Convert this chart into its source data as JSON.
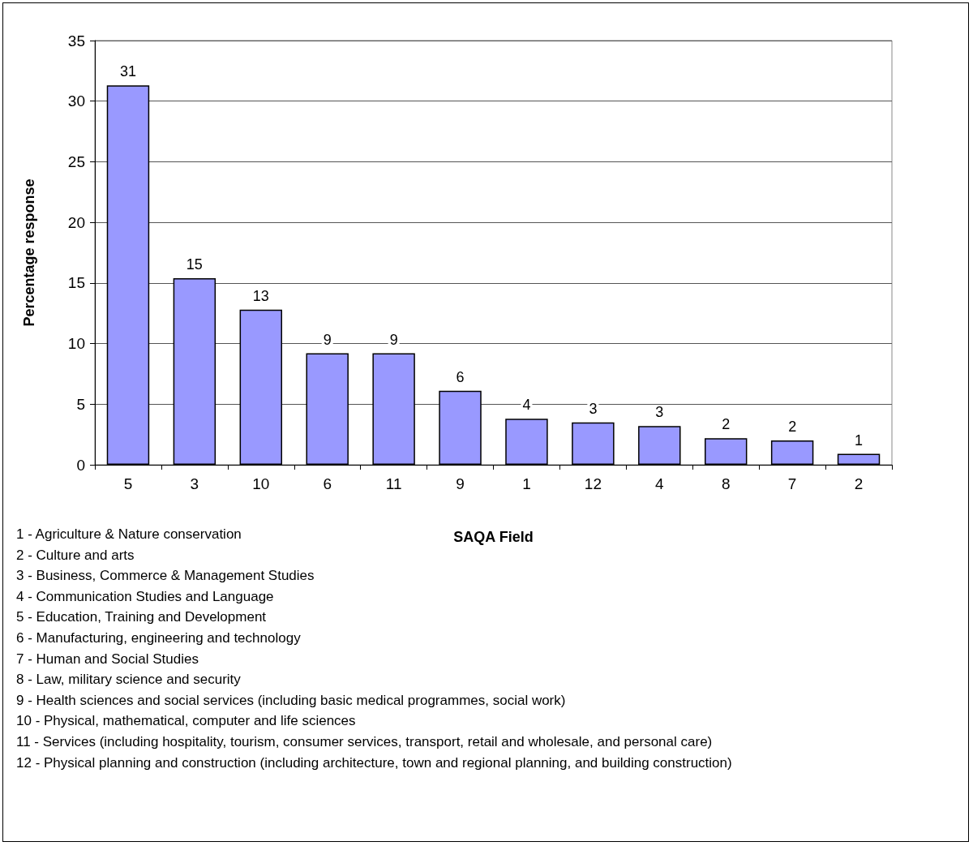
{
  "chart_data": {
    "type": "bar",
    "xlabel": "SAQA Field",
    "ylabel": "Percentage response",
    "categories": [
      "5",
      "3",
      "10",
      "6",
      "11",
      "9",
      "1",
      "12",
      "4",
      "8",
      "7",
      "2"
    ],
    "values": [
      31.3,
      15.4,
      12.8,
      9.2,
      9.2,
      6.1,
      3.8,
      3.5,
      3.2,
      2.2,
      2.0,
      0.9
    ],
    "value_labels": [
      "31",
      "15",
      "13",
      "9",
      "9",
      "6",
      "4",
      "3",
      "3",
      "2",
      "2",
      "1"
    ],
    "color": "#9999ff",
    "ylim": [
      0,
      35
    ],
    "yticks": [
      0,
      5,
      10,
      15,
      20,
      25,
      30,
      35
    ],
    "grid": "y",
    "annotations": [
      "1 - Agriculture & Nature conservation",
      "2 - Culture and arts",
      "3 - Business, Commerce & Management Studies",
      "4 - Communication Studies and Language",
      "5 - Education, Training and Development",
      "6 - Manufacturing, engineering and technology",
      "7 - Human and Social Studies",
      "8 - Law, military science and security",
      "9 - Health sciences and social services (including basic medical programmes, social work)",
      "10 - Physical, mathematical, computer and life sciences",
      "11 - Services (including hospitality, tourism, consumer services, transport, retail and wholesale, and personal care)",
      "12 - Physical planning and construction (including architecture, town and regional planning, and building construction)"
    ]
  }
}
